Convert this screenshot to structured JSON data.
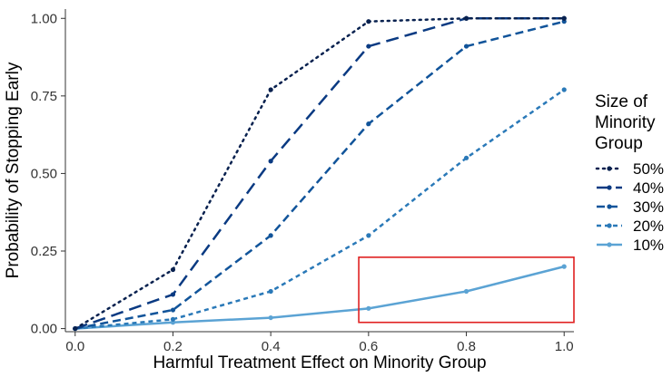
{
  "chart_data": {
    "type": "line",
    "xlabel": "Harmful Treatment Effect on Minority Group",
    "ylabel": "Probability of Stopping Early",
    "x": [
      0.0,
      0.2,
      0.4,
      0.6,
      0.8,
      1.0
    ],
    "x_ticks": [
      "0.0",
      "0.2",
      "0.4",
      "0.6",
      "0.8",
      "1.0"
    ],
    "y_ticks": [
      "0.00",
      "0.25",
      "0.50",
      "0.75",
      "1.00"
    ],
    "xlim": [
      -0.02,
      1.02
    ],
    "ylim": [
      -0.01,
      1.03
    ],
    "grid": false,
    "legend": {
      "title": "Size of Minority Group",
      "title_lines": [
        "Size of",
        "Minority",
        "Group"
      ],
      "placement": "right"
    },
    "series": [
      {
        "name": "50%",
        "color": "#08214f",
        "dash": "dotted",
        "values": [
          0.0,
          0.19,
          0.77,
          0.99,
          1.0,
          1.0
        ]
      },
      {
        "name": "40%",
        "color": "#0a3a82",
        "dash": "longdash",
        "values": [
          0.0,
          0.11,
          0.54,
          0.91,
          1.0,
          1.0
        ]
      },
      {
        "name": "30%",
        "color": "#11549a",
        "dash": "dashed",
        "values": [
          0.0,
          0.06,
          0.3,
          0.66,
          0.91,
          0.99
        ]
      },
      {
        "name": "20%",
        "color": "#2a79b8",
        "dash": "short",
        "values": [
          0.0,
          0.03,
          0.12,
          0.3,
          0.55,
          0.77
        ]
      },
      {
        "name": "10%",
        "color": "#5ba3d4",
        "dash": "solid",
        "values": [
          0.0,
          0.02,
          0.035,
          0.065,
          0.12,
          0.2
        ]
      }
    ],
    "annotations": [
      {
        "type": "rectangle",
        "color": "#e02020",
        "x_range": [
          0.58,
          1.02
        ],
        "y_range": [
          0.02,
          0.23
        ]
      }
    ]
  }
}
